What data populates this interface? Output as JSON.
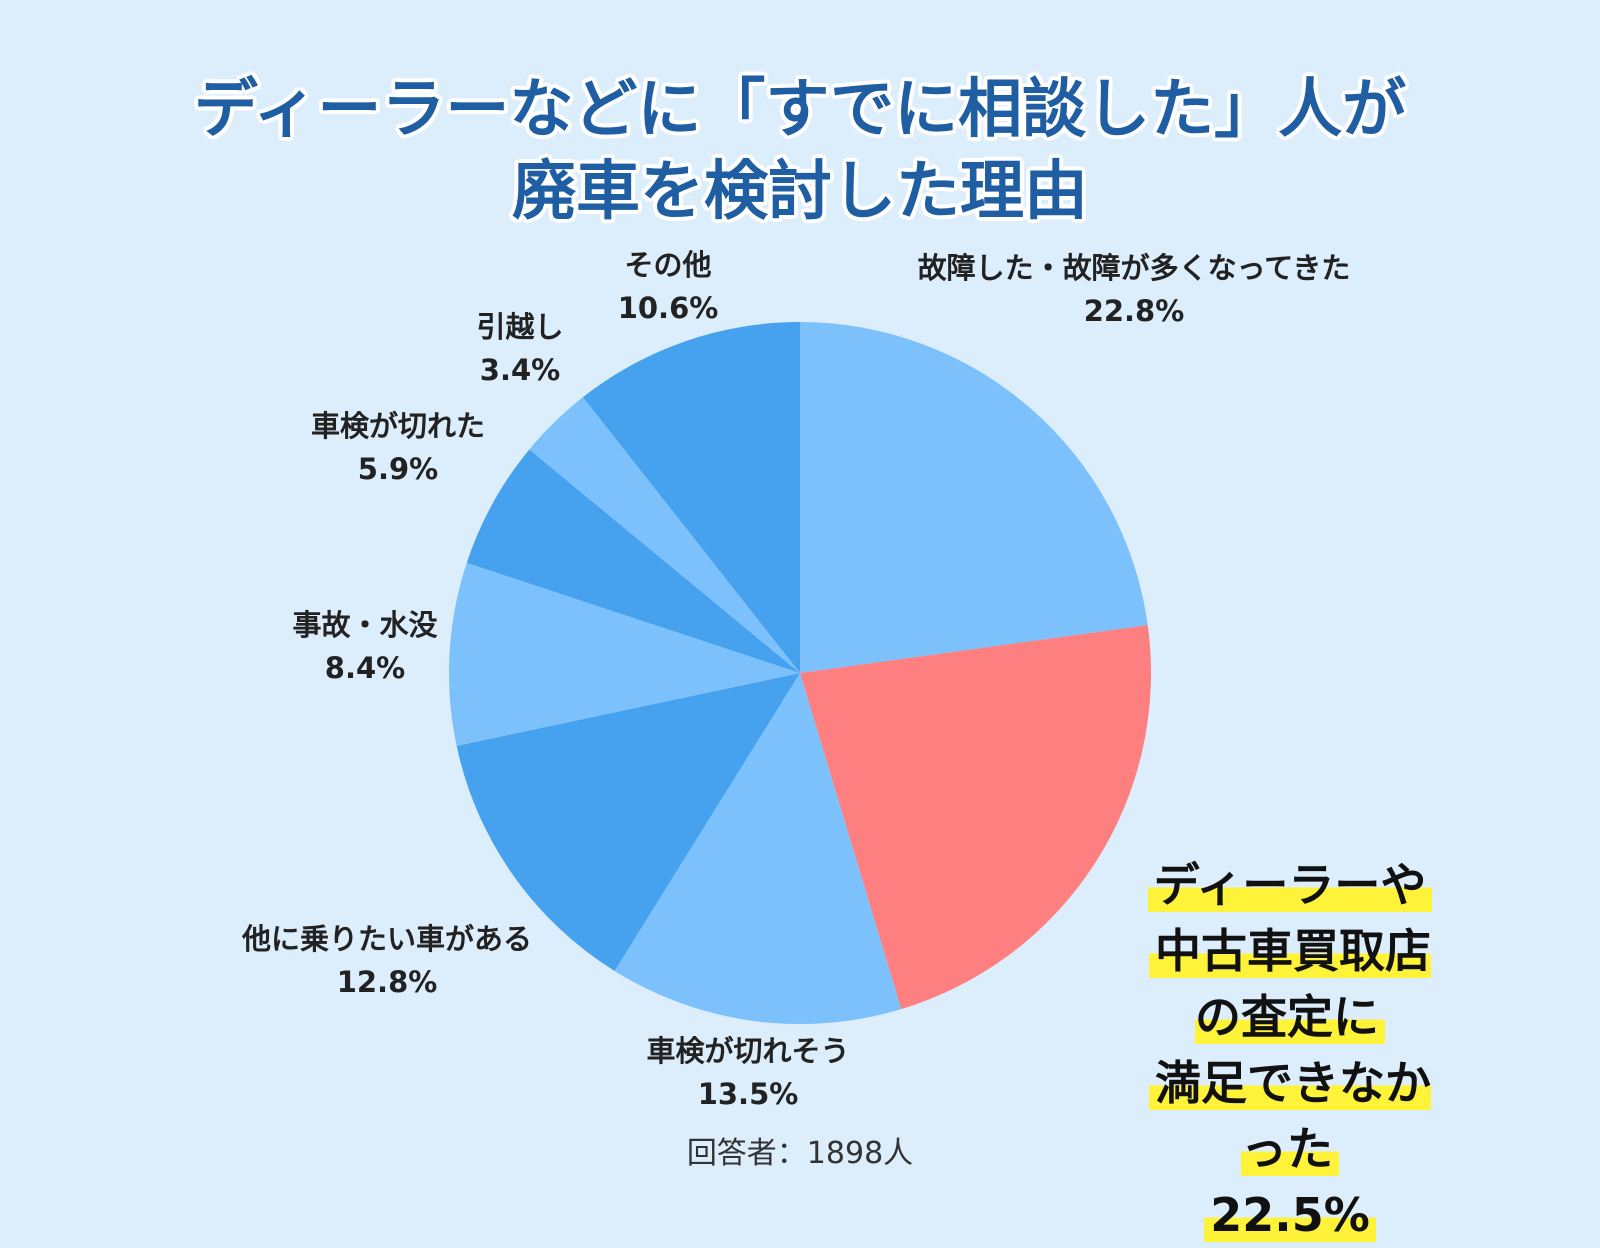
{
  "title": {
    "line1": "ディーラーなどに「すでに相談した」人が",
    "line2": "廃車を検討した理由"
  },
  "chart_data": {
    "type": "pie",
    "slices": [
      {
        "label": "故障した・故障が多くなってきた",
        "value": 22.8,
        "value_label": "22.8%",
        "color": "#7cc0fc"
      },
      {
        "label": "ディーラーや中古車買取店の査定に満足できなかった",
        "value": 22.5,
        "value_label": "22.5%",
        "color": "#fd7f80",
        "highlight": true
      },
      {
        "label": "車検が切れそう",
        "value": 13.5,
        "value_label": "13.5%",
        "color": "#7cc0fc"
      },
      {
        "label": "他に乗りたい車がある",
        "value": 12.8,
        "value_label": "12.8%",
        "color": "#46a2ef"
      },
      {
        "label": "事故・水没",
        "value": 8.4,
        "value_label": "8.4%",
        "color": "#7cc0fc"
      },
      {
        "label": "車検が切れた",
        "value": 5.9,
        "value_label": "5.9%",
        "color": "#46a2ef"
      },
      {
        "label": "引越し",
        "value": 3.4,
        "value_label": "3.4%",
        "color": "#7cc0fc"
      },
      {
        "label": "その他",
        "value": 10.6,
        "value_label": "10.6%",
        "color": "#46a2ef"
      }
    ]
  },
  "callout": {
    "line1": "ディーラーや",
    "line2": "中古車買取店の査定に",
    "line3": "満足できなかった",
    "value": "22.5%"
  },
  "respondents": "回答者：1898人"
}
